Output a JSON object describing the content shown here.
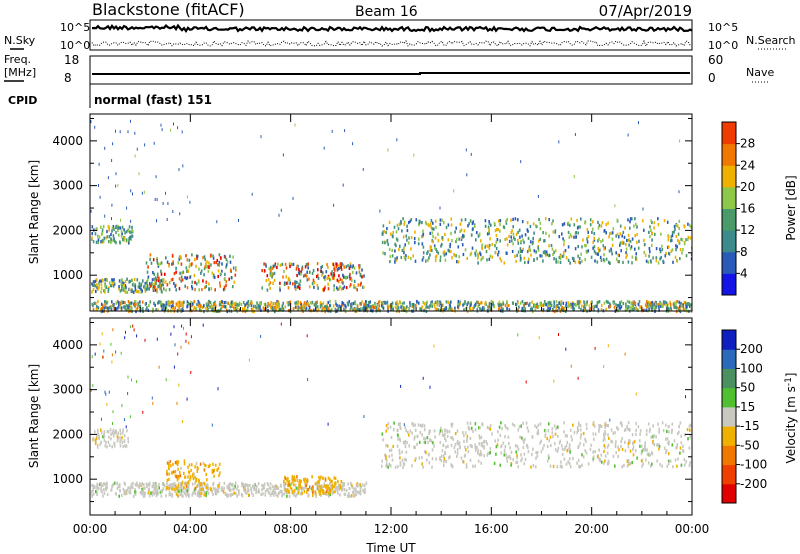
{
  "header": {
    "radar": "Blackstone (fitACF)",
    "beam": "Beam 16",
    "date": "07/Apr/2019"
  },
  "top_panels": {
    "nsky_label": "N.Sky",
    "nsky_ticks": [
      "10^5",
      "10^0"
    ],
    "nsearch_label": "N.Search",
    "nsearch_ticks": [
      "10^5",
      "10^0"
    ],
    "freq_label_line1": "Freq.",
    "freq_label_line2": "[MHz]",
    "freq_ticks": [
      "18",
      "8"
    ],
    "nave_label": "Nave",
    "nave_ticks": [
      "60",
      "0"
    ],
    "cpid_label": "CPID",
    "cpid_value": "normal (fast) 151"
  },
  "colors": {
    "power_scale": [
      "#1414e6",
      "#2a5ab8",
      "#3d8a8a",
      "#4a9a6a",
      "#8ec84a",
      "#f0b000",
      "#f07800",
      "#f03c00",
      "#e60000"
    ],
    "velocity_scale": [
      "#e00000",
      "#f04000",
      "#f07800",
      "#f0b000",
      "#c8c8c0",
      "#50c030",
      "#4a9060",
      "#2a6ab8",
      "#1020c0"
    ]
  },
  "chart_data": [
    {
      "type": "heatmap",
      "title": "",
      "xlabel": "",
      "ylabel": "Slant Range [km]",
      "x_ticks": [
        "00:00",
        "04:00",
        "08:00",
        "12:00",
        "16:00",
        "20:00",
        "00:00"
      ],
      "xlim_hours": [
        0,
        24
      ],
      "y_ticks": [
        "1000",
        "2000",
        "3000",
        "4000"
      ],
      "ylim_km": [
        200,
        4600
      ],
      "colorbar_label": "Power [dB]",
      "colorbar_ticks": [
        "4",
        "8",
        "12",
        "16",
        "20",
        "24",
        "28"
      ],
      "colorbar_range": [
        0,
        32
      ],
      "scatter_regions": [
        {
          "t0": 0.0,
          "t1": 1.7,
          "r0": 1750,
          "r1": 2150,
          "level": "medium"
        },
        {
          "t0": 0.0,
          "t1": 3.0,
          "r0": 650,
          "r1": 950,
          "level": "medium"
        },
        {
          "t0": 2.2,
          "t1": 5.8,
          "r0": 700,
          "r1": 1500,
          "level": "high"
        },
        {
          "t0": 6.8,
          "t1": 10.9,
          "r0": 700,
          "r1": 1300,
          "level": "high"
        },
        {
          "t0": 11.6,
          "t1": 24.0,
          "r0": 1300,
          "r1": 2300,
          "level": "medium"
        },
        {
          "t0": 0.0,
          "t1": 24.0,
          "r0": 200,
          "r1": 450,
          "level": "low"
        }
      ]
    },
    {
      "type": "heatmap",
      "title": "",
      "xlabel": "Time UT",
      "ylabel": "Slant Range [km]",
      "x_ticks": [
        "00:00",
        "04:00",
        "08:00",
        "12:00",
        "16:00",
        "20:00",
        "00:00"
      ],
      "xlim_hours": [
        0,
        24
      ],
      "y_ticks": [
        "1000",
        "2000",
        "3000",
        "4000"
      ],
      "ylim_km": [
        200,
        4600
      ],
      "colorbar_label": "Velocity [m s^-1]",
      "colorbar_ticks": [
        "200",
        "100",
        "50",
        "15",
        "-15",
        "-50",
        "-100",
        "-200"
      ],
      "colorbar_range": [
        -250,
        250
      ],
      "scatter_regions": [
        {
          "t0": 0.0,
          "t1": 1.5,
          "r0": 1750,
          "r1": 2150,
          "level": "ground"
        },
        {
          "t0": 0.0,
          "t1": 11.0,
          "r0": 650,
          "r1": 950,
          "level": "ground"
        },
        {
          "t0": 3.0,
          "t1": 5.2,
          "r0": 800,
          "r1": 1450,
          "level": "negative"
        },
        {
          "t0": 7.7,
          "t1": 10.0,
          "r0": 700,
          "r1": 1100,
          "level": "negative"
        },
        {
          "t0": 11.6,
          "t1": 24.0,
          "r0": 1300,
          "r1": 2300,
          "level": "ground"
        }
      ]
    }
  ]
}
